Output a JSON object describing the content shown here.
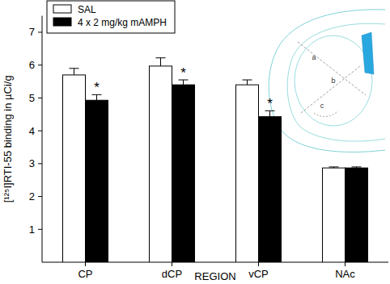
{
  "chart_data": {
    "type": "bar",
    "x_label": "REGION",
    "y_label": "[¹²⁵I]RTI-55 binding in µCi/g",
    "categories": [
      "CP",
      "dCP",
      "vCP",
      "NAc"
    ],
    "series": [
      {
        "name": "SAL",
        "color": "#ffffff",
        "values": [
          5.7,
          5.97,
          5.4,
          2.87
        ],
        "errors": [
          0.2,
          0.25,
          0.15,
          0.03
        ]
      },
      {
        "name": "4 x 2 mg/kg mAMPH",
        "color": "#000000",
        "values": [
          4.93,
          5.4,
          4.43,
          2.87
        ],
        "errors": [
          0.17,
          0.15,
          0.18,
          0.03
        ]
      }
    ],
    "ylim": [
      0,
      7.5
    ],
    "yticks": [
      1,
      2,
      3,
      4,
      5,
      6,
      7
    ],
    "legend": "upper left",
    "annotations": [
      {
        "text": "*",
        "category": 0,
        "series": 1
      },
      {
        "text": "*",
        "category": 1,
        "series": 1
      },
      {
        "text": "*",
        "category": 2,
        "series": 1
      }
    ],
    "inset": {
      "labels": [
        "a",
        "b",
        "c"
      ]
    }
  }
}
